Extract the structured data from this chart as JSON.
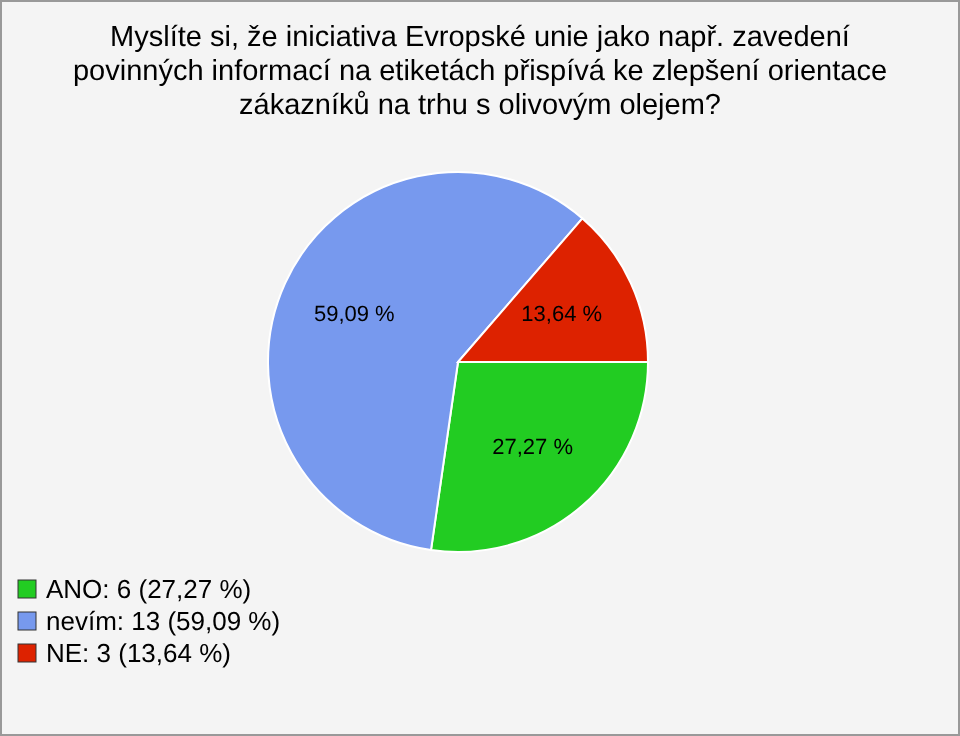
{
  "chart_data": {
    "type": "pie",
    "title": "Myslíte si, že iniciativa Evropské unie jako např. zavedení povinných informací na etiketách přispívá ke zlepšení orientace zákazníků na trhu s olivovým olejem?",
    "categories": [
      "ANO: 6 (27,27 %)",
      "nevím: 13 (59,09 %)",
      "NE: 3 (13,64 %)"
    ],
    "values": [
      27.27,
      59.09,
      13.64
    ],
    "colors": [
      "#22cc22",
      "#7799ee",
      "#dd2200"
    ],
    "value_labels": [
      "27,27 %",
      "59,09 %",
      "13,64 %"
    ],
    "legend": "bottom left"
  }
}
